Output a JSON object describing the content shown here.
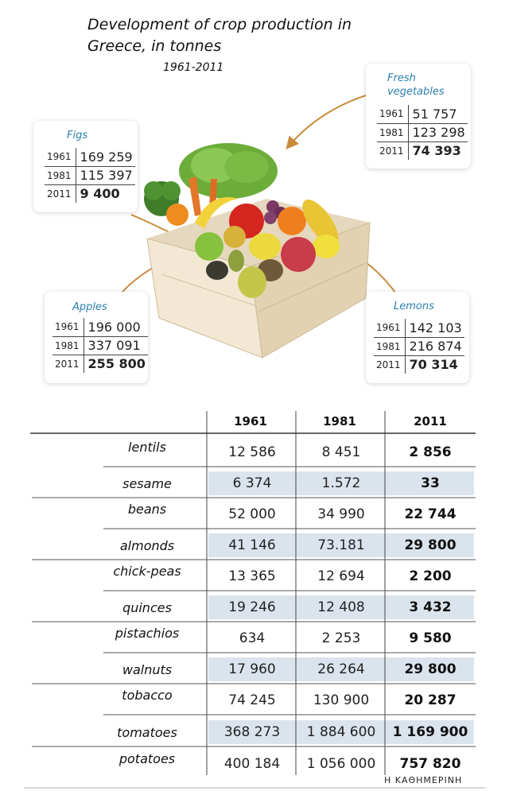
{
  "title": "Development of crop production in Greece, in tonnes",
  "subtitle": "1961-2011",
  "cards": [
    {
      "name": "Figs",
      "rows": [
        {
          "year": "1961",
          "value": "169 259"
        },
        {
          "year": "1981",
          "value": "115 397"
        },
        {
          "year": "2011",
          "value": "9 400"
        }
      ]
    },
    {
      "name": "Fresh vegetables",
      "rows": [
        {
          "year": "1961",
          "value": "51 757"
        },
        {
          "year": "1981",
          "value": "123 298"
        },
        {
          "year": "2011",
          "value": "74 393"
        }
      ]
    },
    {
      "name": "Apples",
      "rows": [
        {
          "year": "1961",
          "value": "196 000"
        },
        {
          "year": "1981",
          "value": "337 091"
        },
        {
          "year": "2011",
          "value": "255 800"
        }
      ]
    },
    {
      "name": "Lemons",
      "rows": [
        {
          "year": "1961",
          "value": "142 103"
        },
        {
          "year": "1981",
          "value": "216 874"
        },
        {
          "year": "2011",
          "value": "70 314"
        }
      ]
    }
  ],
  "table": {
    "columns": [
      "1961",
      "1981",
      "2011"
    ],
    "rows": [
      {
        "crop": "lentils",
        "v1961": "12 586",
        "v1981": "8 451",
        "v2011": "2 856"
      },
      {
        "crop": "sesame",
        "v1961": "6 374",
        "v1981": "1.572",
        "v2011": "33"
      },
      {
        "crop": "beans",
        "v1961": "52 000",
        "v1981": "34 990",
        "v2011": "22 744"
      },
      {
        "crop": "almonds",
        "v1961": "41 146",
        "v1981": "73.181",
        "v2011": "29 800"
      },
      {
        "crop": "chick-peas",
        "v1961": "13 365",
        "v1981": "12 694",
        "v2011": "2 200"
      },
      {
        "crop": "quinces",
        "v1961": "19 246",
        "v1981": "12 408",
        "v2011": "3 432"
      },
      {
        "crop": "pistachios",
        "v1961": "634",
        "v1981": "2 253",
        "v2011": "9 580"
      },
      {
        "crop": "walnuts",
        "v1961": "17 960",
        "v1981": "26 264",
        "v2011": "29 800"
      },
      {
        "crop": "tobacco",
        "v1961": "74 245",
        "v1981": "130 900",
        "v2011": "20 287"
      },
      {
        "crop": "tomatoes",
        "v1961": "368 273",
        "v1981": "1 884 600",
        "v2011": "1 169 900"
      },
      {
        "crop": "potatoes",
        "v1961": "400 184",
        "v1981": "1 056 000",
        "v2011": "757 820"
      }
    ]
  },
  "credit": "Η ΚΑΘΗΜΕΡΙΝΗ",
  "colors": {
    "card_label": "#2a80b0",
    "row_shade": "#dbe3ec",
    "arrow": "#c98a3a"
  }
}
